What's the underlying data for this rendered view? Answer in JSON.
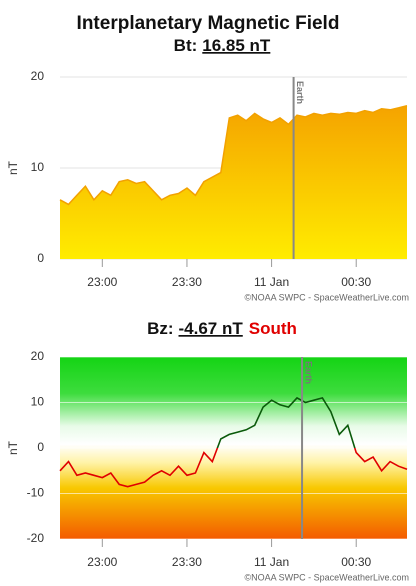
{
  "chart_data": [
    {
      "type": "area",
      "title": "Interplanetary Magnetic Field",
      "readout": {
        "label": "Bt:",
        "value": "16.85 nT"
      },
      "ylabel": "nT",
      "credit": "©NOAA SWPC - SpaceWeatherLive.com",
      "color": "#f2a100",
      "grid": true,
      "values": [
        6.5,
        6,
        7,
        8,
        6.5,
        7.5,
        7,
        8.5,
        8.7,
        8.3,
        8.5,
        7.5,
        6.5,
        7,
        7.2,
        7.8,
        7,
        8.5,
        9,
        9.5,
        15.5,
        15.8,
        15.2,
        16,
        15.4,
        15,
        15.5,
        14.8,
        15.8,
        15.6,
        16,
        15.8,
        16,
        15.9,
        16.1,
        16,
        16.3,
        16.1,
        16.5,
        16.4,
        16.6,
        16.85
      ],
      "xlim": [
        0,
        41
      ],
      "xticks": [
        {
          "value": 5,
          "label": "23:00"
        },
        {
          "value": 15,
          "label": "23:30"
        },
        {
          "value": 25,
          "label": "11 Jan"
        },
        {
          "value": 35,
          "label": "00:30"
        }
      ],
      "ylim": [
        0,
        20
      ],
      "yticks": [
        0,
        10,
        20
      ],
      "earth": {
        "value": 27.6,
        "label": "Earth"
      }
    },
    {
      "type": "line",
      "readout": {
        "label": "Bz:",
        "value": "-4.67 nT",
        "direction": "South"
      },
      "ylabel": "nT",
      "credit": "©NOAA SWPC - SpaceWeatherLive.com",
      "positive_color": "#0a5a0a",
      "negative_color": "#e00000",
      "direction_color": "#e00000",
      "grid": true,
      "values": [
        -5,
        -3,
        -6,
        -5.5,
        -6,
        -6.5,
        -5.5,
        -8,
        -8.5,
        -8,
        -7.5,
        -6,
        -5,
        -6,
        -4,
        -6,
        -5.5,
        -1,
        -3,
        2,
        3,
        3.5,
        4,
        5,
        9,
        10.5,
        9.5,
        9,
        11,
        10,
        10.5,
        11,
        8,
        3,
        5,
        -1,
        -3,
        -2,
        -5,
        -3,
        -4,
        -4.67
      ],
      "xlim": [
        0,
        41
      ],
      "xticks": [
        {
          "value": 5,
          "label": "23:00"
        },
        {
          "value": 15,
          "label": "23:30"
        },
        {
          "value": 25,
          "label": "11 Jan"
        },
        {
          "value": 35,
          "label": "00:30"
        }
      ],
      "ylim": [
        -20,
        20
      ],
      "yticks": [
        -20,
        -10,
        0,
        10,
        20
      ],
      "earth": {
        "value": 28.6,
        "label": "Earth"
      }
    }
  ]
}
